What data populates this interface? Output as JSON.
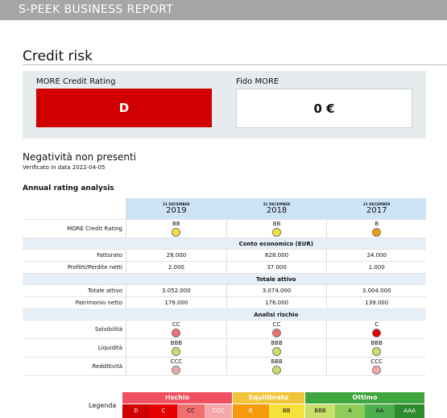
{
  "header": {
    "title": "S-PEEK BUSINESS REPORT"
  },
  "credit": {
    "title": "Credit risk",
    "rating_label": "MORE Credit Rating",
    "rating_value": "D",
    "fido_label": "Fido MORE",
    "fido_value": "0 €"
  },
  "negativity": {
    "title": "Negatività non presenti",
    "verified": "Verificato in data 2022-04-05"
  },
  "annual": {
    "title": "Annual rating analysis",
    "years": [
      {
        "caption": "31 DECEMBER",
        "year": "2019"
      },
      {
        "caption": "31 DECEMBER",
        "year": "2018"
      },
      {
        "caption": "31 DECEMBER",
        "year": "2017"
      }
    ],
    "rating_row": {
      "label": "MORE Credit Rating",
      "values": [
        "BB",
        "BB",
        "B"
      ],
      "colors": [
        "#f5e13a",
        "#f5e13a",
        "#f59a0c"
      ]
    },
    "sections": {
      "conto": "Conto economico (EUR)",
      "attivo": "Totale attivo",
      "rischio": "Analisi rischio"
    },
    "rows": {
      "fatturato": {
        "label": "Fatturato",
        "values": [
          "28.000",
          "628.000",
          "24.000"
        ]
      },
      "profitti": {
        "label": "Profitti/Perdite netti",
        "values": [
          "2.000",
          "37.000",
          "1.000"
        ]
      },
      "totale": {
        "label": "Totale attivo",
        "values": [
          "3.052.000",
          "3.074.000",
          "3.004.000"
        ]
      },
      "patrimonio": {
        "label": "Patrimonio netto",
        "values": [
          "179.000",
          "176.000",
          "139.000"
        ]
      }
    },
    "risk_rows": {
      "solvibilita": {
        "label": "Solvibilità",
        "values": [
          "CC",
          "CC",
          "C"
        ],
        "colors": [
          "#f07070",
          "#f07070",
          "#e60000"
        ]
      },
      "liquidita": {
        "label": "Liquidità",
        "values": [
          "BBB",
          "BBB",
          "BBB"
        ],
        "colors": [
          "#c8e06a",
          "#c8e06a",
          "#c8e06a"
        ]
      },
      "redditivita": {
        "label": "Redditività",
        "values": [
          "CCC",
          "BBB",
          "CCC"
        ],
        "colors": [
          "#f6a8a8",
          "#c8e06a",
          "#f6a8a8"
        ]
      }
    }
  },
  "legend": {
    "label": "Legenda",
    "groups": [
      {
        "name": "rischio",
        "color": "#f0505f",
        "cells": [
          {
            "text": "D",
            "bg": "#d00000",
            "fg": "#ffffff"
          },
          {
            "text": "C",
            "bg": "#e60000",
            "fg": "#ffffff"
          },
          {
            "text": "CC",
            "bg": "#f07070",
            "fg": "#111111"
          },
          {
            "text": "CCC",
            "bg": "#f6a8a8",
            "fg": "#ffffff"
          }
        ]
      },
      {
        "name": "Equilibrato",
        "color": "#f2c43a",
        "cells": [
          {
            "text": "B",
            "bg": "#f59a0c",
            "fg": "#ffffff"
          },
          {
            "text": "BB",
            "bg": "#f5e13a",
            "fg": "#111111"
          }
        ]
      },
      {
        "name": "Ottimo",
        "color": "#3fa63f",
        "cells": [
          {
            "text": "BBB",
            "bg": "#c8e06a",
            "fg": "#111111"
          },
          {
            "text": "A",
            "bg": "#8fcc5a",
            "fg": "#111111"
          },
          {
            "text": "AA",
            "bg": "#4cae4c",
            "fg": "#111111"
          },
          {
            "text": "AAA",
            "bg": "#2e8b2e",
            "fg": "#ffffff"
          }
        ]
      }
    ]
  }
}
